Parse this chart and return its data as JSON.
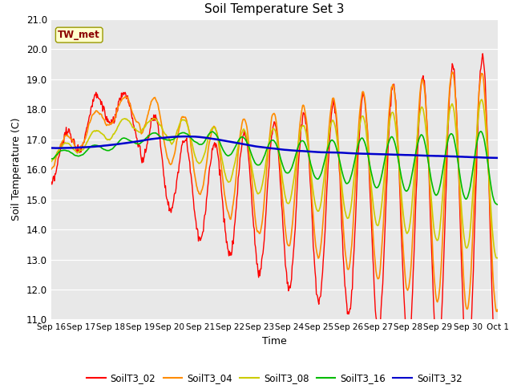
{
  "title": "Soil Temperature Set 3",
  "xlabel": "Time",
  "ylabel": "Soil Temperature (C)",
  "ylim": [
    11.0,
    21.0
  ],
  "yticks": [
    11.0,
    12.0,
    13.0,
    14.0,
    15.0,
    16.0,
    17.0,
    18.0,
    19.0,
    20.0,
    21.0
  ],
  "plot_bg_color": "#e8e8e8",
  "annotation": "TW_met",
  "annotation_color": "#8b0000",
  "annotation_bg": "#ffffcc",
  "line_colors": {
    "SoilT3_02": "#ff0000",
    "SoilT3_04": "#ff8c00",
    "SoilT3_08": "#cccc00",
    "SoilT3_16": "#00bb00",
    "SoilT3_32": "#0000cc"
  },
  "legend_labels": [
    "SoilT3_02",
    "SoilT3_04",
    "SoilT3_08",
    "SoilT3_16",
    "SoilT3_32"
  ],
  "x_tick_labels": [
    "Sep 16",
    "Sep 17",
    "Sep 18",
    "Sep 19",
    "Sep 20",
    "Sep 21",
    "Sep 22",
    "Sep 23",
    "Sep 24",
    "Sep 25",
    "Sep 26",
    "Sep 27",
    "Sep 28",
    "Sep 29",
    "Sep 30",
    "Oct 1"
  ],
  "num_points": 720
}
